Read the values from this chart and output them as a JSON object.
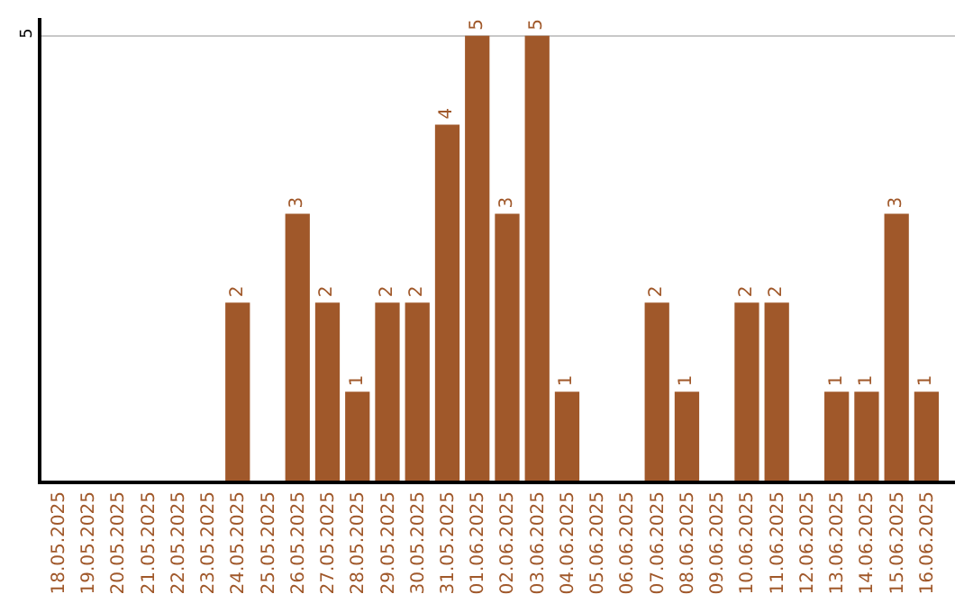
{
  "chart_data": {
    "type": "bar",
    "categories": [
      "18.05.2025",
      "19.05.2025",
      "20.05.2025",
      "21.05.2025",
      "22.05.2025",
      "23.05.2025",
      "24.05.2025",
      "25.05.2025",
      "26.05.2025",
      "27.05.2025",
      "28.05.2025",
      "29.05.2025",
      "30.05.2025",
      "31.05.2025",
      "01.06.2025",
      "02.06.2025",
      "03.06.2025",
      "04.06.2025",
      "05.06.2025",
      "06.06.2025",
      "07.06.2025",
      "08.06.2025",
      "09.06.2025",
      "10.06.2025",
      "11.06.2025",
      "12.06.2025",
      "13.06.2025",
      "14.06.2025",
      "15.06.2025",
      "16.06.2025"
    ],
    "values": [
      0,
      0,
      0,
      0,
      0,
      0,
      2,
      0,
      3,
      2,
      1,
      2,
      2,
      4,
      5,
      3,
      5,
      1,
      0,
      0,
      2,
      1,
      0,
      2,
      2,
      0,
      1,
      1,
      3,
      1
    ],
    "value_labels": [
      null,
      null,
      null,
      null,
      null,
      null,
      "2",
      null,
      "3",
      "2",
      "1",
      "2",
      "2",
      "4",
      "5",
      "3",
      "5",
      "1",
      null,
      null,
      "2",
      "1",
      null,
      "2",
      "2",
      null,
      "1",
      "1",
      "3",
      "1"
    ],
    "color": "#a0582a",
    "ylim": [
      0,
      5.2
    ],
    "yticks": [
      5
    ],
    "grid": "y"
  }
}
